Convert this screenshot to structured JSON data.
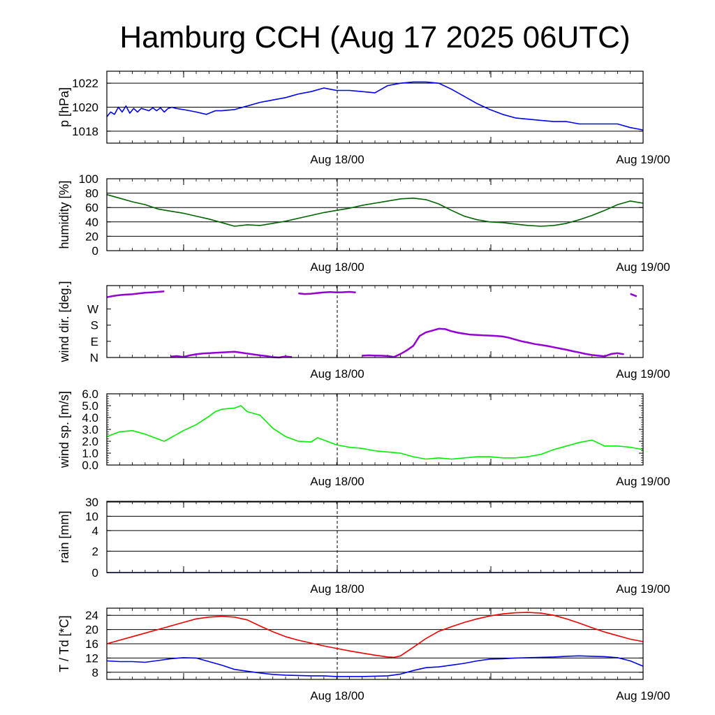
{
  "title": "Hamburg CCH (Aug 17 2025 06UTC)",
  "x_tick_labels": [
    "Aug 18/00",
    "Aug 19/00"
  ],
  "chart_data": [
    {
      "type": "line",
      "ylabel": "p [hPa]",
      "ylim": [
        1017,
        1023
      ],
      "yticks": [
        1018,
        1020,
        1022
      ],
      "grid_y": [
        1018,
        1020,
        1022
      ],
      "xlim": [
        0,
        42
      ],
      "series": [
        {
          "color": "#0000ee",
          "x": [
            0,
            0.3,
            0.6,
            0.9,
            1.2,
            1.5,
            1.8,
            2.1,
            2.4,
            2.7,
            3.0,
            3.3,
            3.6,
            3.9,
            4.2,
            4.5,
            4.8,
            5.1,
            5.4,
            6,
            7,
            7.8,
            8.5,
            9,
            10,
            11,
            12,
            13,
            14,
            15,
            16,
            17,
            17.5,
            18,
            19,
            20,
            21,
            22,
            23,
            24,
            25,
            26,
            27,
            28,
            29,
            30,
            31,
            32,
            33,
            34,
            35,
            36,
            37,
            38,
            39,
            40,
            41,
            42
          ],
          "values": [
            1019.2,
            1019.6,
            1019.4,
            1020.0,
            1019.6,
            1020.1,
            1019.5,
            1019.9,
            1019.6,
            1019.9,
            1019.8,
            1019.7,
            1019.95,
            1019.7,
            1019.95,
            1019.6,
            1019.9,
            1020.0,
            1019.9,
            1019.8,
            1019.6,
            1019.4,
            1019.7,
            1019.7,
            1019.8,
            1020.1,
            1020.4,
            1020.6,
            1020.8,
            1021.1,
            1021.3,
            1021.6,
            1021.5,
            1021.4,
            1021.4,
            1021.3,
            1021.2,
            1021.8,
            1022.0,
            1022.1,
            1022.1,
            1022.0,
            1021.5,
            1020.9,
            1020.3,
            1019.8,
            1019.4,
            1019.1,
            1019.0,
            1018.9,
            1018.8,
            1018.8,
            1018.6,
            1018.6,
            1018.6,
            1018.6,
            1018.3,
            1018.1
          ]
        }
      ]
    },
    {
      "type": "line",
      "ylabel": "humidity [%]",
      "ylim": [
        0,
        100
      ],
      "yticks": [
        0,
        20,
        40,
        60,
        80,
        100
      ],
      "grid_y": [
        20,
        40,
        60,
        80
      ],
      "xlim": [
        0,
        42
      ],
      "series": [
        {
          "color": "#006400",
          "x": [
            0,
            1,
            2,
            3,
            4,
            5,
            6,
            7,
            8,
            9,
            10,
            11,
            12,
            13,
            14,
            15,
            16,
            17,
            18,
            19,
            20,
            21,
            22,
            23,
            24,
            25,
            26,
            27,
            28,
            29,
            30,
            31,
            32,
            33,
            34,
            35,
            36,
            37,
            38,
            39,
            40,
            41,
            42
          ],
          "values": [
            78,
            73,
            68,
            64,
            58,
            55,
            52,
            48,
            44,
            39,
            34,
            36,
            35,
            38,
            41,
            45,
            49,
            53,
            56,
            59,
            63,
            66,
            69,
            72,
            73,
            71,
            65,
            56,
            48,
            43,
            40,
            39,
            37,
            35,
            34,
            35,
            38,
            43,
            49,
            56,
            64,
            69,
            66
          ]
        }
      ]
    },
    {
      "type": "line",
      "ylabel": "wind dir. [deg.]",
      "ylim": [
        0,
        400
      ],
      "yticks": [
        0,
        90,
        180,
        270
      ],
      "ytick_labels": [
        "N",
        "E",
        "S",
        "W"
      ],
      "grid_y": [],
      "xlim": [
        0,
        42
      ],
      "series": [
        {
          "color": "#9400d3",
          "x": [
            0,
            0.5,
            1.0,
            1.5,
            2.0,
            2.5,
            3.0,
            3.5,
            4.0,
            4.5,
            5.0,
            5.5,
            6.0,
            6.5,
            7.0,
            7.5,
            8.0,
            8.5,
            9.0,
            9.5,
            10.0,
            10.5,
            11.0,
            11.5,
            12.0,
            12.5,
            13.0,
            13.5,
            14.0,
            14.5,
            15.0,
            15.5,
            16.0,
            16.5,
            17.0,
            17.5,
            18.0,
            18.5,
            19.0,
            19.5,
            20.0,
            20.5,
            21.0,
            21.5,
            22.0,
            22.5,
            23.0,
            23.5,
            24.0,
            24.5,
            25.0,
            25.5,
            26.0,
            26.5,
            27.0,
            27.5,
            28.0,
            28.5,
            29.0,
            29.5,
            30.0,
            30.5,
            31.0,
            31.5,
            32.0,
            32.5,
            33.0,
            33.5,
            34.0,
            34.5,
            35.0,
            35.5,
            36.0,
            36.5,
            37.0,
            37.5,
            38.0,
            38.5,
            39.0,
            39.5,
            40.0,
            40.5,
            41.0,
            41.5,
            42.0
          ],
          "values": [
            335,
            342,
            347,
            350,
            352,
            356,
            360,
            362,
            365,
            368,
            5,
            8,
            3,
            12,
            18,
            22,
            24,
            26,
            28,
            30,
            32,
            27,
            22,
            17,
            12,
            8,
            2,
            0,
            6,
            2,
            357,
            353,
            355,
            359,
            362,
            364,
            362,
            363,
            365,
            362,
            10,
            12,
            11,
            10,
            8,
            3,
            20,
            40,
            65,
            120,
            140,
            150,
            160,
            158,
            146,
            138,
            132,
            127,
            125,
            123,
            122,
            120,
            117,
            110,
            100,
            90,
            83,
            75,
            70,
            64,
            57,
            50,
            43,
            35,
            28,
            20,
            14,
            10,
            7,
            20,
            24,
            18,
            354,
            340,
            20
          ]
        }
      ]
    },
    {
      "type": "line",
      "ylabel": "wind sp. [m/s]",
      "ylim": [
        0,
        6
      ],
      "yticks": [
        0,
        1,
        2,
        3,
        4,
        5,
        6
      ],
      "ytick_labels": [
        "0.0",
        "1.0",
        "2.0",
        "3.0",
        "4.0",
        "5.0",
        "6.0"
      ],
      "grid_y": [],
      "xlim": [
        0,
        42
      ],
      "series": [
        {
          "color": "#00ee00",
          "x": [
            0,
            1,
            2,
            3,
            4,
            4.5,
            5,
            6,
            7,
            8,
            8.5,
            9,
            10,
            10.5,
            11,
            12,
            13,
            14,
            15,
            16,
            16.5,
            17,
            18,
            19,
            20,
            21,
            22,
            23,
            24,
            25,
            26,
            27,
            28,
            29,
            30,
            31,
            32,
            33,
            34,
            35,
            36,
            37,
            37.5,
            38,
            39,
            40,
            41,
            42
          ],
          "values": [
            2.4,
            2.8,
            2.9,
            2.6,
            2.2,
            2.0,
            2.3,
            2.9,
            3.4,
            4.1,
            4.5,
            4.7,
            4.8,
            5.0,
            4.5,
            4.2,
            3.1,
            2.4,
            2.0,
            1.95,
            2.3,
            2.1,
            1.7,
            1.5,
            1.4,
            1.2,
            1.1,
            1.0,
            0.7,
            0.5,
            0.6,
            0.5,
            0.6,
            0.7,
            0.7,
            0.6,
            0.6,
            0.7,
            0.9,
            1.3,
            1.6,
            1.9,
            2.0,
            2.1,
            1.6,
            1.6,
            1.5,
            1.3
          ]
        }
      ]
    },
    {
      "type": "line",
      "ylabel": "rain [mm]",
      "ylim": [
        0,
        30
      ],
      "yticks": [
        0,
        2,
        4,
        10,
        30
      ],
      "grid_y": [
        2,
        4,
        10,
        30
      ],
      "xlim": [
        0,
        42
      ],
      "series": [
        {
          "color": "#0000aa",
          "x": [
            0,
            42
          ],
          "values": [
            0,
            0
          ]
        }
      ]
    },
    {
      "type": "line",
      "ylabel": "T / Td [*C]",
      "ylim": [
        6,
        26
      ],
      "yticks": [
        8,
        12,
        16,
        20,
        24
      ],
      "grid_y": [
        8,
        12,
        16,
        20,
        24
      ],
      "xlim": [
        0,
        42
      ],
      "series": [
        {
          "color": "#ee0000",
          "x": [
            0,
            1,
            2,
            3,
            4,
            5,
            6,
            7,
            8,
            9,
            10,
            11,
            12,
            13,
            14,
            15,
            16,
            17,
            18,
            19,
            20,
            21,
            22,
            22.5,
            23,
            24,
            25,
            26,
            27,
            28,
            29,
            30,
            31,
            32,
            33,
            34,
            35,
            36,
            37,
            38,
            39,
            40,
            41,
            42
          ],
          "values": [
            16.0,
            17.0,
            18.0,
            19.0,
            20.0,
            21.0,
            22.0,
            23.0,
            23.5,
            23.7,
            23.5,
            22.7,
            21.0,
            19.4,
            18.0,
            17.0,
            16.2,
            15.4,
            14.7,
            14.0,
            13.4,
            12.8,
            12.3,
            12.2,
            12.6,
            15.0,
            17.5,
            19.5,
            20.8,
            22.0,
            23.0,
            23.8,
            24.4,
            24.7,
            24.8,
            24.6,
            24.0,
            23.0,
            21.8,
            20.5,
            19.3,
            18.3,
            17.3,
            16.6
          ]
        },
        {
          "color": "#0000ee",
          "x": [
            0,
            1,
            2,
            3,
            4,
            5,
            6,
            7,
            8,
            9,
            10,
            11,
            12,
            13,
            14,
            15,
            16,
            17,
            18,
            19,
            20,
            21,
            22,
            23,
            24,
            25,
            26,
            27,
            28,
            29,
            30,
            31,
            32,
            33,
            34,
            35,
            36,
            37,
            38,
            39,
            40,
            41,
            42
          ],
          "values": [
            11.2,
            11.0,
            11.0,
            10.8,
            11.3,
            11.8,
            12.1,
            12.0,
            11.0,
            10.0,
            8.8,
            8.3,
            7.8,
            7.4,
            7.2,
            7.1,
            7.0,
            7.0,
            6.8,
            6.8,
            6.8,
            6.9,
            7.0,
            7.5,
            8.5,
            9.3,
            9.5,
            10.0,
            10.5,
            11.2,
            11.7,
            11.8,
            12.0,
            12.1,
            12.2,
            12.3,
            12.5,
            12.6,
            12.5,
            12.4,
            12.1,
            11.2,
            9.7
          ]
        }
      ]
    }
  ]
}
